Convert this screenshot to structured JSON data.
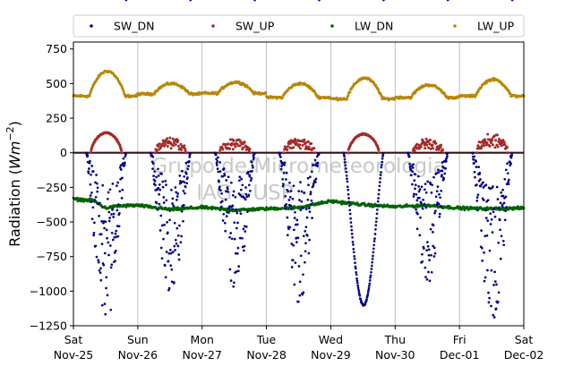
{
  "chart_data": {
    "type": "scatter",
    "ylabel": "Radiation (Wm⁻²)",
    "ylabel_parts": {
      "main": "Radiation (",
      "italic": "Wm",
      "sup": "−2",
      "close": ")"
    },
    "xlim": [
      0,
      7
    ],
    "ylim": [
      -1250,
      800
    ],
    "yticks": [
      -1250,
      -1000,
      -750,
      -500,
      -250,
      0,
      250,
      500,
      750
    ],
    "ytick_labels": [
      "−1250",
      "−1000",
      "−750",
      "−500",
      "−250",
      "0",
      "250",
      "500",
      "750"
    ],
    "xticks": [
      0,
      1,
      2,
      3,
      4,
      5,
      6,
      7
    ],
    "xtick_labels": [
      [
        "Sat",
        "Nov-25"
      ],
      [
        "Sun",
        "Nov-26"
      ],
      [
        "Mon",
        "Nov-27"
      ],
      [
        "Tue",
        "Nov-28"
      ],
      [
        "Wed",
        "Nov-29"
      ],
      [
        "Thu",
        "Nov-30"
      ],
      [
        "Fri",
        "Dec-01"
      ],
      [
        "Sat",
        "Dec-02"
      ]
    ],
    "grid": "vertical",
    "zero_line": true,
    "legend_position": "top, outside, 4 columns",
    "watermark": [
      "Grupo de Micrometeorologia",
      "IAG - USP"
    ],
    "series": [
      {
        "name": "SW_DN",
        "color": "#00008b",
        "daily_min": [
          -1180,
          -1020,
          -940,
          -1050,
          -1100,
          -900,
          -1180
        ],
        "daytime_scattered": [
          true,
          true,
          true,
          true,
          false,
          true,
          true
        ]
      },
      {
        "name": "SW_UP",
        "color": "#a52a2a",
        "daily_max": [
          145,
          110,
          100,
          110,
          135,
          105,
          140
        ],
        "daytime_scattered": [
          false,
          true,
          true,
          true,
          false,
          true,
          true
        ]
      },
      {
        "name": "LW_DN",
        "color": "#006400",
        "profile_x": [
          0,
          0.3,
          0.5,
          0.7,
          1.0,
          1.5,
          2.0,
          2.5,
          3.0,
          3.5,
          4.0,
          4.5,
          5.0,
          5.5,
          6.0,
          6.5,
          7.0
        ],
        "profile_y": [
          -335,
          -345,
          -400,
          -385,
          -380,
          -410,
          -395,
          -415,
          -405,
          -395,
          -350,
          -375,
          -390,
          -380,
          -400,
          -405,
          -400
        ]
      },
      {
        "name": "LW_UP",
        "color": "#b8860b",
        "base": [
          410,
          425,
          430,
          400,
          390,
          400,
          410
        ],
        "daily_peak": [
          590,
          500,
          510,
          500,
          540,
          490,
          530
        ]
      }
    ]
  }
}
